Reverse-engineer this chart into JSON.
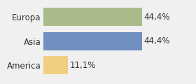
{
  "categories": [
    "America",
    "Asia",
    "Europa"
  ],
  "values": [
    11.1,
    44.4,
    44.4
  ],
  "labels": [
    "11,1%",
    "44,4%",
    "44,4%"
  ],
  "bar_colors": [
    "#f0d080",
    "#7090c0",
    "#aaba88"
  ],
  "background_color": "#f0f0f0",
  "xlim": [
    0,
    58
  ],
  "bar_height": 0.75,
  "label_fontsize": 8.5,
  "tick_fontsize": 8.5
}
